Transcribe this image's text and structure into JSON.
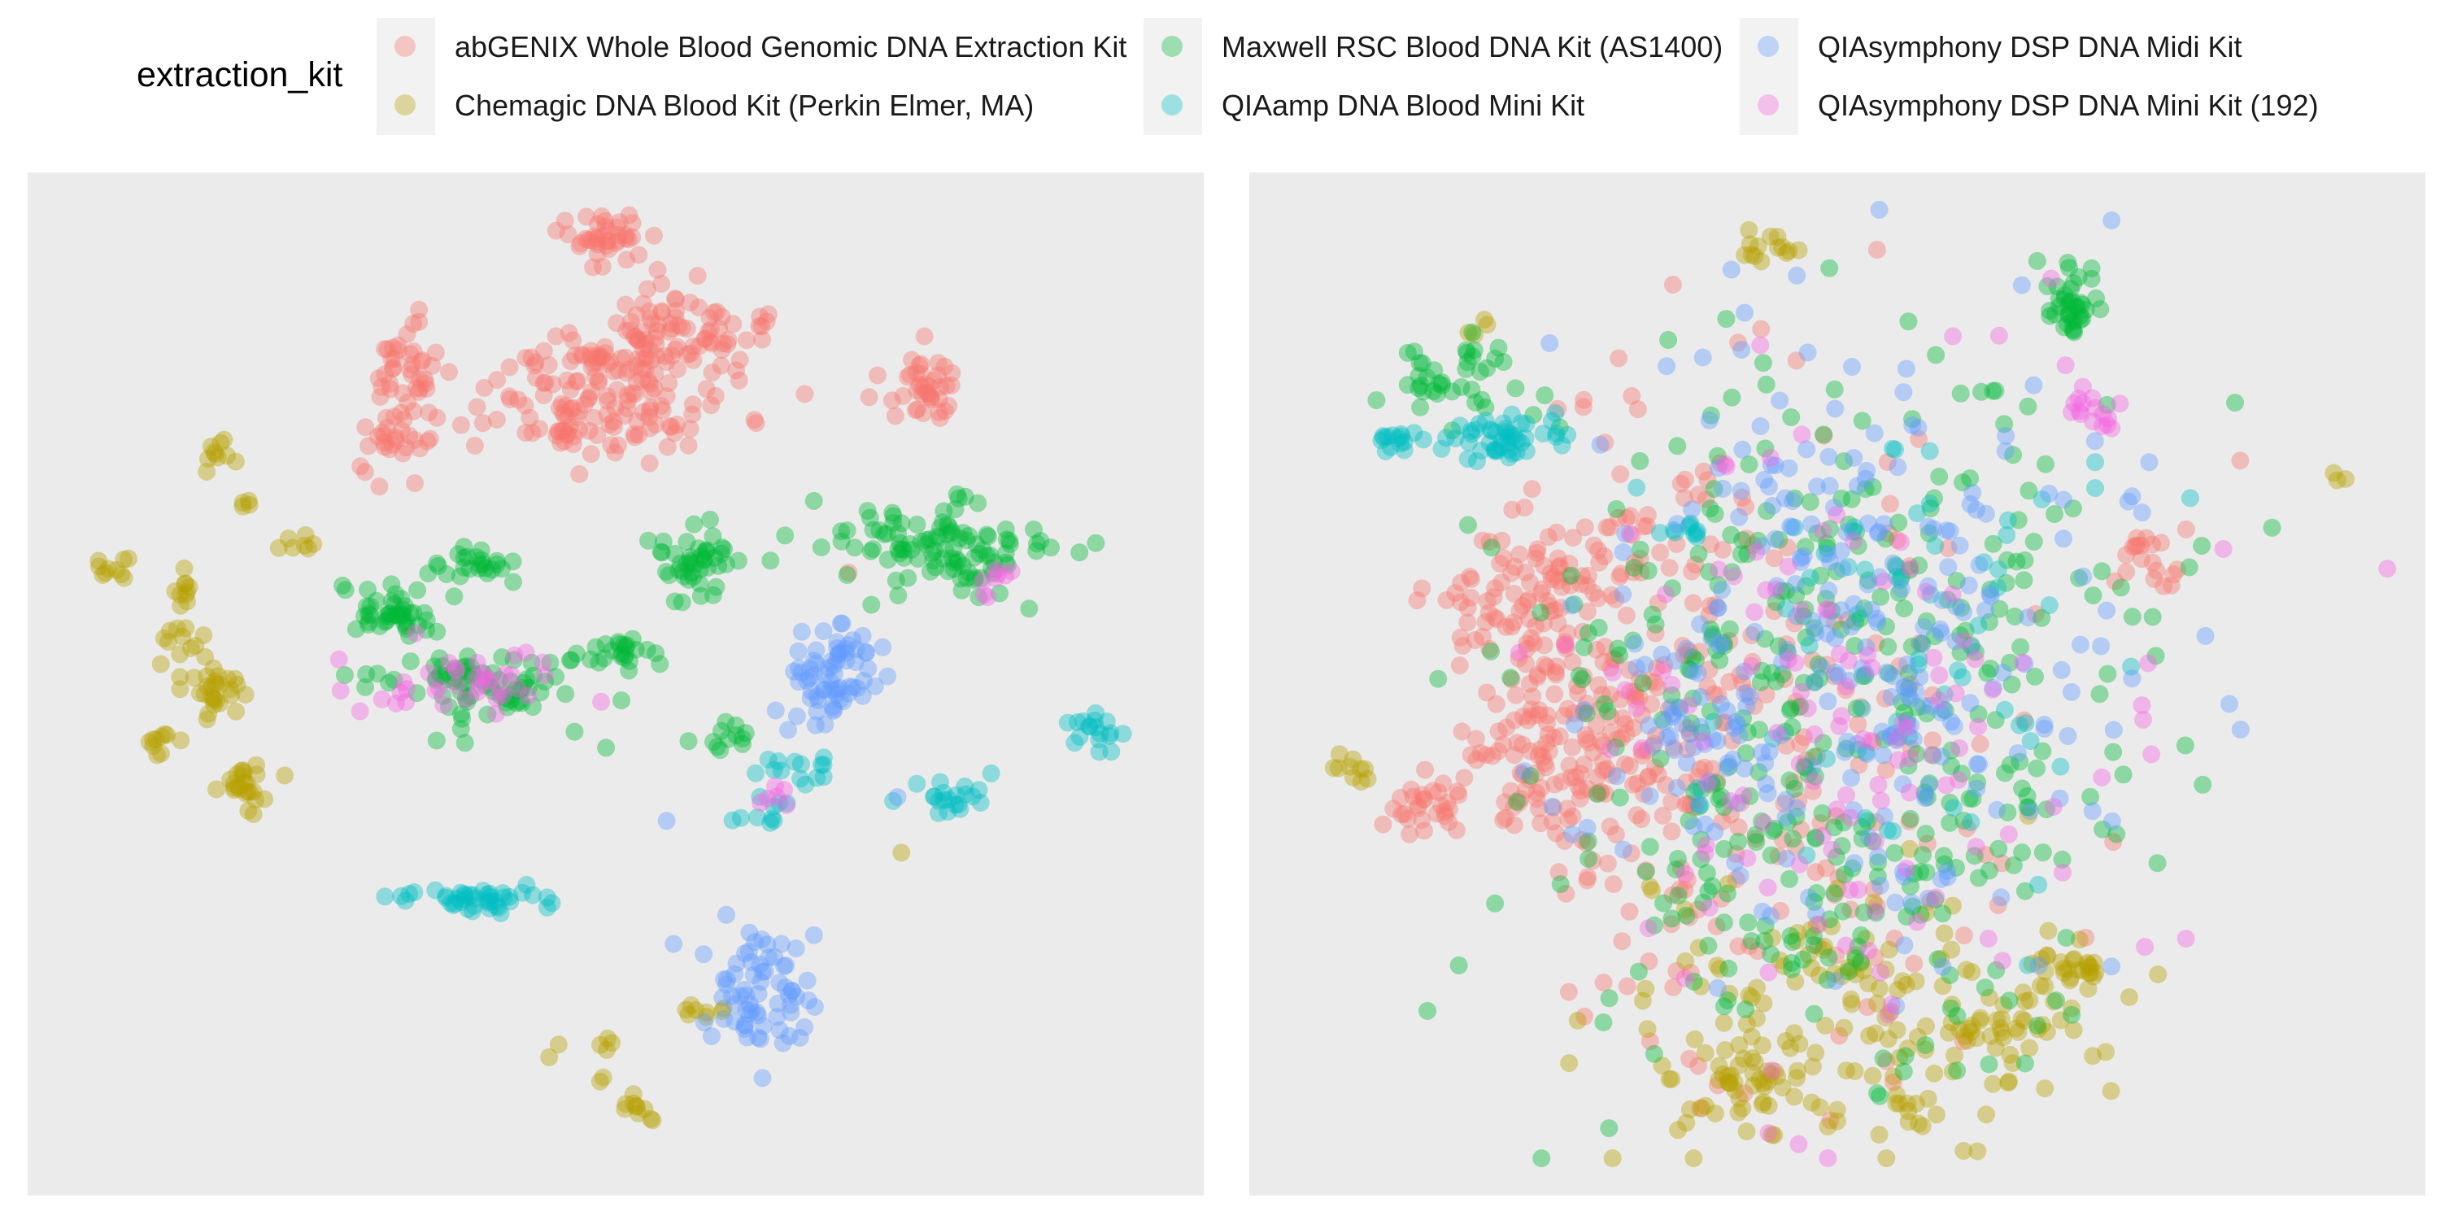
{
  "legend": {
    "title": "extraction_kit",
    "items": [
      {
        "label": "abGENIX Whole Blood Genomic DNA Extraction Kit",
        "color": "#F8766D"
      },
      {
        "label": "Chemagic DNA Blood Kit (Perkin Elmer, MA)",
        "color": "#B79F00"
      },
      {
        "label": "Maxwell RSC Blood DNA Kit (AS1400)",
        "color": "#00BA38"
      },
      {
        "label": "QIAamp DNA Blood Mini Kit",
        "color": "#00BFC4"
      },
      {
        "label": "QIAsymphony DSP DNA Midi Kit",
        "color": "#619CFF"
      },
      {
        "label": "QIAsymphony DSP DNA Mini Kit (192)",
        "color": "#F564E3"
      }
    ]
  },
  "chart_data": [
    {
      "type": "scatter",
      "title": "",
      "xlabel": "",
      "ylabel": "",
      "axes_visible": false,
      "grid": false,
      "legend_placement": "top",
      "series": [
        {
          "name": "abGENIX Whole Blood Genomic DNA Extraction Kit",
          "clusters": [
            {
              "x": 0.49,
              "y": 0.96,
              "sx": 0.022,
              "sy": 0.015,
              "n": 40
            },
            {
              "x": 0.54,
              "y": 0.86,
              "sx": 0.045,
              "sy": 0.03,
              "n": 110
            },
            {
              "x": 0.47,
              "y": 0.79,
              "sx": 0.06,
              "sy": 0.028,
              "n": 130
            },
            {
              "x": 0.31,
              "y": 0.83,
              "sx": 0.015,
              "sy": 0.02,
              "n": 40
            },
            {
              "x": 0.3,
              "y": 0.75,
              "sx": 0.014,
              "sy": 0.018,
              "n": 25
            },
            {
              "x": 0.78,
              "y": 0.81,
              "sx": 0.018,
              "sy": 0.018,
              "n": 40
            },
            {
              "x": 0.71,
              "y": 0.62,
              "sx": 0.004,
              "sy": 0.004,
              "n": 1
            }
          ]
        },
        {
          "name": "Chemagic DNA Blood Kit (Perkin Elmer, MA)",
          "clusters": [
            {
              "x": 0.14,
              "y": 0.74,
              "sx": 0.008,
              "sy": 0.01,
              "n": 10
            },
            {
              "x": 0.16,
              "y": 0.69,
              "sx": 0.005,
              "sy": 0.005,
              "n": 4
            },
            {
              "x": 0.21,
              "y": 0.65,
              "sx": 0.012,
              "sy": 0.01,
              "n": 7
            },
            {
              "x": 0.05,
              "y": 0.62,
              "sx": 0.01,
              "sy": 0.006,
              "n": 10
            },
            {
              "x": 0.11,
              "y": 0.59,
              "sx": 0.008,
              "sy": 0.012,
              "n": 10
            },
            {
              "x": 0.11,
              "y": 0.55,
              "sx": 0.01,
              "sy": 0.01,
              "n": 10
            },
            {
              "x": 0.14,
              "y": 0.49,
              "sx": 0.016,
              "sy": 0.018,
              "n": 30
            },
            {
              "x": 0.09,
              "y": 0.44,
              "sx": 0.008,
              "sy": 0.01,
              "n": 10
            },
            {
              "x": 0.17,
              "y": 0.39,
              "sx": 0.014,
              "sy": 0.014,
              "n": 25
            },
            {
              "x": 0.76,
              "y": 0.325,
              "sx": 0.003,
              "sy": 0.003,
              "n": 1
            },
            {
              "x": 0.58,
              "y": 0.159,
              "sx": 0.014,
              "sy": 0.005,
              "n": 8
            },
            {
              "x": 0.44,
              "y": 0.12,
              "sx": 0.006,
              "sy": 0.006,
              "n": 2
            },
            {
              "x": 0.5,
              "y": 0.12,
              "sx": 0.01,
              "sy": 0.006,
              "n": 4
            },
            {
              "x": 0.49,
              "y": 0.09,
              "sx": 0.004,
              "sy": 0.004,
              "n": 2
            },
            {
              "x": 0.52,
              "y": 0.055,
              "sx": 0.008,
              "sy": 0.012,
              "n": 10
            }
          ]
        },
        {
          "name": "Maxwell RSC Blood DNA Kit (AS1400)",
          "clusters": [
            {
              "x": 0.79,
              "y": 0.64,
              "sx": 0.05,
              "sy": 0.025,
              "n": 110
            },
            {
              "x": 0.57,
              "y": 0.625,
              "sx": 0.018,
              "sy": 0.018,
              "n": 45
            },
            {
              "x": 0.37,
              "y": 0.625,
              "sx": 0.016,
              "sy": 0.011,
              "n": 25
            },
            {
              "x": 0.31,
              "y": 0.575,
              "sx": 0.025,
              "sy": 0.015,
              "n": 45
            },
            {
              "x": 0.51,
              "y": 0.53,
              "sx": 0.016,
              "sy": 0.01,
              "n": 22
            },
            {
              "x": 0.38,
              "y": 0.5,
              "sx": 0.055,
              "sy": 0.022,
              "n": 80
            },
            {
              "x": 0.6,
              "y": 0.45,
              "sx": 0.012,
              "sy": 0.01,
              "n": 12
            }
          ]
        },
        {
          "name": "QIAamp DNA Blood Mini Kit",
          "clusters": [
            {
              "x": 0.93,
              "y": 0.45,
              "sx": 0.016,
              "sy": 0.01,
              "n": 18
            },
            {
              "x": 0.8,
              "y": 0.385,
              "sx": 0.014,
              "sy": 0.012,
              "n": 20
            },
            {
              "x": 0.66,
              "y": 0.41,
              "sx": 0.02,
              "sy": 0.012,
              "n": 14
            },
            {
              "x": 0.63,
              "y": 0.37,
              "sx": 0.014,
              "sy": 0.012,
              "n": 10
            },
            {
              "x": 0.37,
              "y": 0.275,
              "sx": 0.04,
              "sy": 0.008,
              "n": 45
            },
            {
              "x": 0.75,
              "y": 0.38,
              "sx": 0.003,
              "sy": 0.003,
              "n": 1
            }
          ]
        },
        {
          "name": "QIAsymphony DSP DNA Midi Kit",
          "clusters": [
            {
              "x": 0.69,
              "y": 0.51,
              "sx": 0.022,
              "sy": 0.03,
              "n": 70
            },
            {
              "x": 0.625,
              "y": 0.18,
              "sx": 0.025,
              "sy": 0.035,
              "n": 70
            },
            {
              "x": 0.55,
              "y": 0.36,
              "sx": 0.003,
              "sy": 0.003,
              "n": 1
            },
            {
              "x": 0.755,
              "y": 0.38,
              "sx": 0.003,
              "sy": 0.003,
              "n": 1
            }
          ]
        },
        {
          "name": "QIAsymphony DSP DNA Mini Kit (192)",
          "clusters": [
            {
              "x": 0.38,
              "y": 0.5,
              "sx": 0.055,
              "sy": 0.02,
              "n": 40
            },
            {
              "x": 0.84,
              "y": 0.61,
              "sx": 0.01,
              "sy": 0.01,
              "n": 8
            },
            {
              "x": 0.64,
              "y": 0.385,
              "sx": 0.012,
              "sy": 0.01,
              "n": 6
            }
          ]
        }
      ]
    },
    {
      "type": "scatter",
      "title": "",
      "xlabel": "",
      "ylabel": "",
      "axes_visible": false,
      "grid": false,
      "legend_placement": "top",
      "series": [
        {
          "name": "abGENIX Whole Blood Genomic DNA Extraction Kit",
          "clusters": [
            {
              "x": 0.22,
              "y": 0.58,
              "sx": 0.04,
              "sy": 0.04,
              "n": 90
            },
            {
              "x": 0.24,
              "y": 0.42,
              "sx": 0.04,
              "sy": 0.04,
              "n": 90
            },
            {
              "x": 0.13,
              "y": 0.37,
              "sx": 0.02,
              "sy": 0.015,
              "n": 30
            },
            {
              "x": 0.32,
              "y": 0.5,
              "sx": 0.07,
              "sy": 0.14,
              "n": 160
            },
            {
              "x": 0.46,
              "y": 0.45,
              "sx": 0.12,
              "sy": 0.18,
              "n": 150
            },
            {
              "x": 0.78,
              "y": 0.63,
              "sx": 0.02,
              "sy": 0.015,
              "n": 20
            }
          ]
        },
        {
          "name": "Chemagic DNA Blood Kit (Perkin Elmer, MA)",
          "clusters": [
            {
              "x": 0.44,
              "y": 0.955,
              "sx": 0.012,
              "sy": 0.008,
              "n": 14
            },
            {
              "x": 0.18,
              "y": 0.87,
              "sx": 0.01,
              "sy": 0.006,
              "n": 4
            },
            {
              "x": 0.95,
              "y": 0.715,
              "sx": 0.006,
              "sy": 0.003,
              "n": 3
            },
            {
              "x": 0.06,
              "y": 0.41,
              "sx": 0.008,
              "sy": 0.01,
              "n": 10
            },
            {
              "x": 0.53,
              "y": 0.16,
              "sx": 0.11,
              "sy": 0.07,
              "n": 160
            },
            {
              "x": 0.41,
              "y": 0.08,
              "sx": 0.03,
              "sy": 0.02,
              "n": 40
            },
            {
              "x": 0.71,
              "y": 0.2,
              "sx": 0.015,
              "sy": 0.014,
              "n": 25
            },
            {
              "x": 0.65,
              "y": 0.14,
              "sx": 0.02,
              "sy": 0.01,
              "n": 20
            }
          ]
        },
        {
          "name": "Maxwell RSC Blood DNA Kit (AS1400)",
          "clusters": [
            {
              "x": 0.71,
              "y": 0.9,
              "sx": 0.012,
              "sy": 0.02,
              "n": 40
            },
            {
              "x": 0.16,
              "y": 0.82,
              "sx": 0.03,
              "sy": 0.02,
              "n": 40
            },
            {
              "x": 0.5,
              "y": 0.45,
              "sx": 0.13,
              "sy": 0.19,
              "n": 420
            }
          ]
        },
        {
          "name": "QIAamp DNA Blood Mini Kit",
          "clusters": [
            {
              "x": 0.1,
              "y": 0.755,
              "sx": 0.012,
              "sy": 0.006,
              "n": 14
            },
            {
              "x": 0.2,
              "y": 0.76,
              "sx": 0.035,
              "sy": 0.014,
              "n": 50
            },
            {
              "x": 0.37,
              "y": 0.66,
              "sx": 0.02,
              "sy": 0.006,
              "n": 10
            },
            {
              "x": 0.55,
              "y": 0.55,
              "sx": 0.1,
              "sy": 0.15,
              "n": 60
            }
          ]
        },
        {
          "name": "QIAsymphony DSP DNA Midi Kit",
          "clusters": [
            {
              "x": 0.47,
              "y": 0.925,
              "sx": 0.004,
              "sy": 0.004,
              "n": 1
            },
            {
              "x": 0.52,
              "y": 0.55,
              "sx": 0.12,
              "sy": 0.17,
              "n": 260
            },
            {
              "x": 0.39,
              "y": 0.43,
              "sx": 0.04,
              "sy": 0.05,
              "n": 40
            }
          ]
        },
        {
          "name": "QIAsymphony DSP DNA Mini Kit (192)",
          "clusters": [
            {
              "x": 0.73,
              "y": 0.79,
              "sx": 0.014,
              "sy": 0.014,
              "n": 16
            },
            {
              "x": 0.52,
              "y": 0.45,
              "sx": 0.13,
              "sy": 0.18,
              "n": 130
            }
          ]
        }
      ]
    }
  ]
}
